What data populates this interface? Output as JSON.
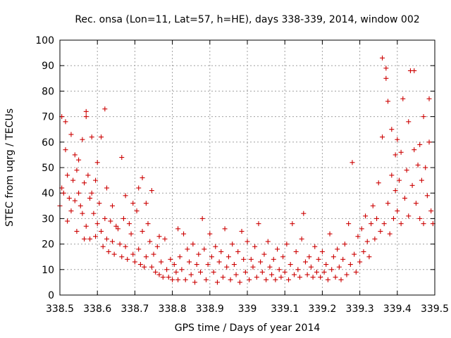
{
  "chart_data": {
    "type": "scatter",
    "title": "Rec. onsa (Lon=11, Lat=57, h=HE), days 338-339, 2014, window 002",
    "xlabel": "GPS time / Days of year 2014",
    "ylabel": "STEC from uqrg / TECUs",
    "xlim": [
      338.5,
      339.5
    ],
    "ylim": [
      0,
      100
    ],
    "xticks": [
      "338.5",
      "338.6",
      "338.7",
      "338.8",
      "338.9",
      "339",
      "339.1",
      "339.2",
      "339.3",
      "339.4",
      "339.5"
    ],
    "xtick_values": [
      338.5,
      338.6,
      338.7,
      338.8,
      338.9,
      339.0,
      339.1,
      339.2,
      339.3,
      339.4,
      339.5
    ],
    "yticks": [
      "0",
      "10",
      "20",
      "30",
      "40",
      "50",
      "60",
      "70",
      "80",
      "90",
      "100"
    ],
    "ytick_values": [
      0,
      10,
      20,
      30,
      40,
      50,
      60,
      70,
      80,
      90,
      100
    ],
    "grid": true,
    "marker": "plus",
    "color": "#cc0000",
    "series": [
      {
        "points": [
          [
            338.5,
            35
          ],
          [
            338.505,
            42
          ],
          [
            338.505,
            70
          ],
          [
            338.51,
            40
          ],
          [
            338.515,
            57
          ],
          [
            338.515,
            68
          ],
          [
            338.52,
            47
          ],
          [
            338.52,
            29
          ],
          [
            338.525,
            38
          ],
          [
            338.53,
            63
          ],
          [
            338.53,
            33
          ],
          [
            338.535,
            45
          ],
          [
            338.54,
            55
          ],
          [
            338.54,
            37
          ],
          [
            338.545,
            49
          ],
          [
            338.545,
            25
          ],
          [
            338.55,
            53
          ],
          [
            338.55,
            40
          ],
          [
            338.555,
            35
          ],
          [
            338.56,
            61
          ],
          [
            338.56,
            32
          ],
          [
            338.565,
            44
          ],
          [
            338.565,
            22
          ],
          [
            338.57,
            72
          ],
          [
            338.57,
            70
          ],
          [
            338.57,
            27
          ],
          [
            338.575,
            47
          ],
          [
            338.58,
            38
          ],
          [
            338.58,
            22
          ],
          [
            338.585,
            62
          ],
          [
            338.585,
            40
          ],
          [
            338.59,
            32
          ],
          [
            338.595,
            45
          ],
          [
            338.595,
            23
          ],
          [
            338.6,
            52
          ],
          [
            338.6,
            28
          ],
          [
            338.605,
            36
          ],
          [
            338.61,
            62
          ],
          [
            338.61,
            25
          ],
          [
            338.615,
            19
          ],
          [
            338.62,
            73
          ],
          [
            338.62,
            30
          ],
          [
            338.625,
            42
          ],
          [
            338.625,
            22
          ],
          [
            338.63,
            17
          ],
          [
            338.635,
            29
          ],
          [
            338.64,
            35
          ],
          [
            338.64,
            21
          ],
          [
            338.645,
            16
          ],
          [
            338.65,
            27
          ],
          [
            338.655,
            26
          ],
          [
            338.66,
            20
          ],
          [
            338.665,
            54
          ],
          [
            338.665,
            15
          ],
          [
            338.67,
            30
          ],
          [
            338.675,
            39
          ],
          [
            338.675,
            19
          ],
          [
            338.68,
            14
          ],
          [
            338.685,
            28
          ],
          [
            338.69,
            24
          ],
          [
            338.695,
            36
          ],
          [
            338.695,
            16
          ],
          [
            338.7,
            13
          ],
          [
            338.705,
            33
          ],
          [
            338.71,
            42
          ],
          [
            338.71,
            18
          ],
          [
            338.715,
            12
          ],
          [
            338.72,
            46
          ],
          [
            338.72,
            25
          ],
          [
            338.725,
            11
          ],
          [
            338.73,
            36
          ],
          [
            338.73,
            15
          ],
          [
            338.735,
            28
          ],
          [
            338.74,
            21
          ],
          [
            338.745,
            41
          ],
          [
            338.745,
            11
          ],
          [
            338.75,
            16
          ],
          [
            338.755,
            9
          ],
          [
            338.76,
            19
          ],
          [
            338.765,
            23
          ],
          [
            338.765,
            8
          ],
          [
            338.77,
            13
          ],
          [
            338.775,
            7
          ],
          [
            338.78,
            22
          ],
          [
            338.785,
            10
          ],
          [
            338.79,
            7
          ],
          [
            338.795,
            14
          ],
          [
            338.8,
            6
          ],
          [
            338.805,
            12
          ],
          [
            338.81,
            9
          ],
          [
            338.815,
            26
          ],
          [
            338.815,
            6
          ],
          [
            338.82,
            15
          ],
          [
            338.825,
            10
          ],
          [
            338.83,
            24
          ],
          [
            338.835,
            6
          ],
          [
            338.84,
            18
          ],
          [
            338.845,
            13
          ],
          [
            338.85,
            8
          ],
          [
            338.855,
            20
          ],
          [
            338.86,
            5
          ],
          [
            338.865,
            12
          ],
          [
            338.87,
            16
          ],
          [
            338.875,
            9
          ],
          [
            338.88,
            30
          ],
          [
            338.885,
            18
          ],
          [
            338.89,
            6
          ],
          [
            338.895,
            12
          ],
          [
            338.9,
            24
          ],
          [
            338.905,
            15
          ],
          [
            338.91,
            9
          ],
          [
            338.915,
            19
          ],
          [
            338.92,
            5
          ],
          [
            338.925,
            13
          ],
          [
            338.93,
            17
          ],
          [
            338.935,
            7
          ],
          [
            338.94,
            26
          ],
          [
            338.945,
            11
          ],
          [
            338.95,
            15
          ],
          [
            338.955,
            6
          ],
          [
            338.96,
            20
          ],
          [
            338.965,
            12
          ],
          [
            338.97,
            8
          ],
          [
            338.975,
            17
          ],
          [
            338.98,
            5
          ],
          [
            338.985,
            25
          ],
          [
            338.99,
            14
          ],
          [
            338.995,
            9
          ],
          [
            339.0,
            21
          ],
          [
            339.005,
            6
          ],
          [
            339.01,
            14
          ],
          [
            339.015,
            11
          ],
          [
            339.02,
            19
          ],
          [
            339.025,
            7
          ],
          [
            339.03,
            28
          ],
          [
            339.035,
            13
          ],
          [
            339.04,
            9
          ],
          [
            339.045,
            16
          ],
          [
            339.05,
            6
          ],
          [
            339.055,
            21
          ],
          [
            339.06,
            11
          ],
          [
            339.065,
            8
          ],
          [
            339.07,
            14
          ],
          [
            339.075,
            6
          ],
          [
            339.08,
            18
          ],
          [
            339.085,
            10
          ],
          [
            339.09,
            7
          ],
          [
            339.095,
            15
          ],
          [
            339.1,
            9
          ],
          [
            339.105,
            20
          ],
          [
            339.11,
            6
          ],
          [
            339.115,
            12
          ],
          [
            339.12,
            28
          ],
          [
            339.125,
            8
          ],
          [
            339.13,
            17
          ],
          [
            339.135,
            10
          ],
          [
            339.14,
            7
          ],
          [
            339.145,
            22
          ],
          [
            339.15,
            32
          ],
          [
            339.155,
            13
          ],
          [
            339.16,
            8
          ],
          [
            339.165,
            15
          ],
          [
            339.17,
            11
          ],
          [
            339.175,
            7
          ],
          [
            339.18,
            19
          ],
          [
            339.185,
            9
          ],
          [
            339.19,
            14
          ],
          [
            339.195,
            7
          ],
          [
            339.2,
            17
          ],
          [
            339.205,
            9
          ],
          [
            339.21,
            12
          ],
          [
            339.215,
            6
          ],
          [
            339.22,
            24
          ],
          [
            339.225,
            10
          ],
          [
            339.23,
            15
          ],
          [
            339.235,
            7
          ],
          [
            339.24,
            18
          ],
          [
            339.245,
            11
          ],
          [
            339.25,
            6
          ],
          [
            339.255,
            14
          ],
          [
            339.26,
            20
          ],
          [
            339.265,
            8
          ],
          [
            339.27,
            28
          ],
          [
            339.275,
            12
          ],
          [
            339.28,
            52
          ],
          [
            339.285,
            16
          ],
          [
            339.29,
            9
          ],
          [
            339.295,
            23
          ],
          [
            339.3,
            13
          ],
          [
            339.305,
            26
          ],
          [
            339.31,
            17
          ],
          [
            339.315,
            31
          ],
          [
            339.32,
            21
          ],
          [
            339.325,
            15
          ],
          [
            339.33,
            28
          ],
          [
            339.335,
            35
          ],
          [
            339.34,
            22
          ],
          [
            339.345,
            30
          ],
          [
            339.35,
            44
          ],
          [
            339.355,
            25
          ],
          [
            339.36,
            62
          ],
          [
            339.36,
            93
          ],
          [
            339.365,
            28
          ],
          [
            339.37,
            85
          ],
          [
            339.37,
            89
          ],
          [
            339.375,
            36
          ],
          [
            339.375,
            76
          ],
          [
            339.38,
            24
          ],
          [
            339.385,
            47
          ],
          [
            339.385,
            65
          ],
          [
            339.39,
            30
          ],
          [
            339.395,
            41
          ],
          [
            339.395,
            55
          ],
          [
            339.4,
            61
          ],
          [
            339.4,
            33
          ],
          [
            339.405,
            45
          ],
          [
            339.41,
            56
          ],
          [
            339.41,
            28
          ],
          [
            339.415,
            77
          ],
          [
            339.42,
            38
          ],
          [
            339.425,
            49
          ],
          [
            339.43,
            68
          ],
          [
            339.43,
            31
          ],
          [
            339.435,
            88
          ],
          [
            339.44,
            43
          ],
          [
            339.445,
            88
          ],
          [
            339.445,
            57
          ],
          [
            339.45,
            36
          ],
          [
            339.455,
            51
          ],
          [
            339.46,
            59
          ],
          [
            339.46,
            30
          ],
          [
            339.465,
            45
          ],
          [
            339.47,
            70
          ],
          [
            339.47,
            28
          ],
          [
            339.475,
            50
          ],
          [
            339.48,
            39
          ],
          [
            339.485,
            77
          ],
          [
            339.485,
            60
          ],
          [
            339.49,
            33
          ],
          [
            339.495,
            28
          ]
        ]
      }
    ]
  }
}
